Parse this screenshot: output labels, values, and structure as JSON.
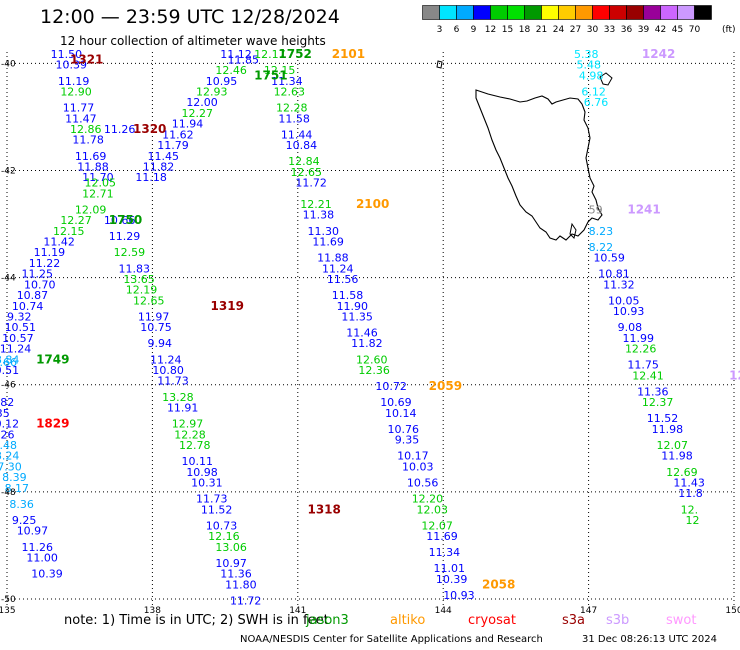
{
  "header": {
    "title": "12:00 — 23:59 UTC 12/28/2024",
    "subtitle": "12 hour collection of altimeter wave heights"
  },
  "color_scale": {
    "labels": [
      "3",
      "6",
      "9",
      "12",
      "15",
      "18",
      "21",
      "24",
      "27",
      "30",
      "33",
      "36",
      "39",
      "42",
      "45",
      "70"
    ],
    "unit": "(ft)",
    "colors": [
      "#888888",
      "#00e5ff",
      "#00aaff",
      "#0000ff",
      "#00cc00",
      "#00e000",
      "#009900",
      "#ffff00",
      "#ffcc00",
      "#ff9900",
      "#ff0000",
      "#cc0000",
      "#990000",
      "#990099",
      "#cc66ff",
      "#cc99ff",
      "#000000"
    ]
  },
  "map": {
    "x_ticks": [
      "135",
      "138",
      "141",
      "144",
      "147",
      "150"
    ],
    "y_ticks": [
      "-40",
      "-42",
      "-44",
      "-46",
      "-48",
      "-50"
    ],
    "lon_range": [
      135,
      150
    ],
    "lat_range": [
      -50,
      -39.9
    ]
  },
  "track_labels": [
    {
      "t": "1321",
      "lon": 136.3,
      "lat": -40.0,
      "c": "#990000"
    },
    {
      "t": "1320",
      "lon": 137.6,
      "lat": -41.3,
      "c": "#990000"
    },
    {
      "t": "1750",
      "lon": 137.1,
      "lat": -43.0,
      "c": "#009900"
    },
    {
      "t": "1749",
      "lon": 135.6,
      "lat": -45.6,
      "c": "#009900"
    },
    {
      "t": "1319",
      "lon": 139.2,
      "lat": -44.6,
      "c": "#990000"
    },
    {
      "t": "1829",
      "lon": 135.6,
      "lat": -46.8,
      "c": "#ff0000"
    },
    {
      "t": "1318",
      "lon": 141.2,
      "lat": -48.4,
      "c": "#990000"
    },
    {
      "t": "1751",
      "lon": 140.1,
      "lat": -40.3,
      "c": "#009900"
    },
    {
      "t": "1752",
      "lon": 140.6,
      "lat": -39.9,
      "c": "#009900"
    },
    {
      "t": "2101",
      "lon": 141.7,
      "lat": -39.9,
      "c": "#ff9900"
    },
    {
      "t": "2100",
      "lon": 142.2,
      "lat": -42.7,
      "c": "#ff9900"
    },
    {
      "t": "2059",
      "lon": 143.7,
      "lat": -46.1,
      "c": "#ff9900"
    },
    {
      "t": "2058",
      "lon": 144.8,
      "lat": -49.8,
      "c": "#ff9900"
    },
    {
      "t": "1242",
      "lon": 148.1,
      "lat": -39.9,
      "c": "#cc99ff"
    },
    {
      "t": "1241",
      "lon": 147.8,
      "lat": -42.8,
      "c": "#cc99ff"
    },
    {
      "t": "124",
      "lon": 149.9,
      "lat": -45.9,
      "c": "#cc99ff"
    }
  ],
  "observations": [
    {
      "t": "11.50",
      "lon": 135.9,
      "lat": -39.9,
      "c": "#0000ff"
    },
    {
      "t": "10.39",
      "lon": 136.0,
      "lat": -40.1,
      "c": "#0000ff"
    },
    {
      "t": "11.19",
      "lon": 136.05,
      "lat": -40.4,
      "c": "#0000ff"
    },
    {
      "t": "12.90",
      "lon": 136.1,
      "lat": -40.6,
      "c": "#00cc00"
    },
    {
      "t": "11.77",
      "lon": 136.15,
      "lat": -40.9,
      "c": "#0000ff"
    },
    {
      "t": "11.47",
      "lon": 136.2,
      "lat": -41.1,
      "c": "#0000ff"
    },
    {
      "t": "12.86",
      "lon": 136.3,
      "lat": -41.3,
      "c": "#00cc00"
    },
    {
      "t": "11.78",
      "lon": 136.35,
      "lat": -41.5,
      "c": "#0000ff"
    },
    {
      "t": "11.69",
      "lon": 136.4,
      "lat": -41.8,
      "c": "#0000ff"
    },
    {
      "t": "11.88",
      "lon": 136.45,
      "lat": -42.0,
      "c": "#0000ff"
    },
    {
      "t": "11.70",
      "lon": 136.55,
      "lat": -42.2,
      "c": "#0000ff"
    },
    {
      "t": "12.05",
      "lon": 136.6,
      "lat": -42.3,
      "c": "#00cc00"
    },
    {
      "t": "12.71",
      "lon": 136.55,
      "lat": -42.5,
      "c": "#00cc00"
    },
    {
      "t": "12.09",
      "lon": 136.4,
      "lat": -42.8,
      "c": "#00cc00"
    },
    {
      "t": "12.27",
      "lon": 136.1,
      "lat": -43.0,
      "c": "#00cc00"
    },
    {
      "t": "12.15",
      "lon": 135.95,
      "lat": -43.2,
      "c": "#00cc00"
    },
    {
      "t": "11.42",
      "lon": 135.75,
      "lat": -43.4,
      "c": "#0000ff"
    },
    {
      "t": "11.19",
      "lon": 135.55,
      "lat": -43.6,
      "c": "#0000ff"
    },
    {
      "t": "11.22",
      "lon": 135.45,
      "lat": -43.8,
      "c": "#0000ff"
    },
    {
      "t": "11.25",
      "lon": 135.3,
      "lat": -44.0,
      "c": "#0000ff"
    },
    {
      "t": "10.70",
      "lon": 135.35,
      "lat": -44.2,
      "c": "#0000ff"
    },
    {
      "t": "10.87",
      "lon": 135.2,
      "lat": -44.4,
      "c": "#0000ff"
    },
    {
      "t": "10.74",
      "lon": 135.1,
      "lat": -44.6,
      "c": "#0000ff"
    },
    {
      "t": "9.32",
      "lon": 135.0,
      "lat": -44.8,
      "c": "#0000ff"
    },
    {
      "t": "10.51",
      "lon": 134.95,
      "lat": -45.0,
      "c": "#0000ff"
    },
    {
      "t": "10.57",
      "lon": 134.9,
      "lat": -45.2,
      "c": "#0000ff"
    },
    {
      "t": "11.24",
      "lon": 134.85,
      "lat": -45.4,
      "c": "#0000ff"
    },
    {
      "t": "8.84",
      "lon": 134.75,
      "lat": -45.6,
      "c": "#00aaff"
    },
    {
      "t": "9.66",
      "lon": 134.7,
      "lat": -45.65,
      "c": "#00aaff"
    },
    {
      "t": "10.51",
      "lon": 134.6,
      "lat": -45.8,
      "c": "#0000ff"
    },
    {
      "t": "11.26",
      "lon": 137.0,
      "lat": -41.3,
      "c": "#0000ff"
    },
    {
      "t": "10.66",
      "lon": 137.0,
      "lat": -43.0,
      "c": "#0000ff"
    },
    {
      "t": "11.29",
      "lon": 137.1,
      "lat": -43.3,
      "c": "#0000ff"
    },
    {
      "t": "12.59",
      "lon": 137.2,
      "lat": -43.6,
      "c": "#00cc00"
    },
    {
      "t": "11.83",
      "lon": 137.3,
      "lat": -43.9,
      "c": "#0000ff"
    },
    {
      "t": "13.65",
      "lon": 137.4,
      "lat": -44.1,
      "c": "#00cc00"
    },
    {
      "t": "12.19",
      "lon": 137.45,
      "lat": -44.3,
      "c": "#00cc00"
    },
    {
      "t": "12.65",
      "lon": 137.6,
      "lat": -44.5,
      "c": "#00cc00"
    },
    {
      "t": "11.97",
      "lon": 137.7,
      "lat": -44.8,
      "c": "#0000ff"
    },
    {
      "t": "10.75",
      "lon": 137.75,
      "lat": -45.0,
      "c": "#0000ff"
    },
    {
      "t": "9.94",
      "lon": 137.9,
      "lat": -45.3,
      "c": "#0000ff"
    },
    {
      "t": "11.24",
      "lon": 137.95,
      "lat": -45.6,
      "c": "#0000ff"
    },
    {
      "t": "10.80",
      "lon": 138.0,
      "lat": -45.8,
      "c": "#0000ff"
    },
    {
      "t": "11.73",
      "lon": 138.1,
      "lat": -46.0,
      "c": "#0000ff"
    },
    {
      "t": "13.28",
      "lon": 138.2,
      "lat": -46.3,
      "c": "#00cc00"
    },
    {
      "t": "11.91",
      "lon": 138.3,
      "lat": -46.5,
      "c": "#0000ff"
    },
    {
      "t": "12.97",
      "lon": 138.4,
      "lat": -46.8,
      "c": "#00cc00"
    },
    {
      "t": "12.28",
      "lon": 138.45,
      "lat": -47.0,
      "c": "#00cc00"
    },
    {
      "t": "12.78",
      "lon": 138.55,
      "lat": -47.2,
      "c": "#00cc00"
    },
    {
      "t": "10.11",
      "lon": 138.6,
      "lat": -47.5,
      "c": "#0000ff"
    },
    {
      "t": "10.98",
      "lon": 138.7,
      "lat": -47.7,
      "c": "#0000ff"
    },
    {
      "t": "10.31",
      "lon": 138.8,
      "lat": -47.9,
      "c": "#0000ff"
    },
    {
      "t": "11.73",
      "lon": 138.9,
      "lat": -48.2,
      "c": "#0000ff"
    },
    {
      "t": "11.52",
      "lon": 139.0,
      "lat": -48.4,
      "c": "#0000ff"
    },
    {
      "t": "10.73",
      "lon": 139.1,
      "lat": -48.7,
      "c": "#0000ff"
    },
    {
      "t": "12.16",
      "lon": 139.15,
      "lat": -48.9,
      "c": "#00cc00"
    },
    {
      "t": "13.06",
      "lon": 139.3,
      "lat": -49.1,
      "c": "#00cc00"
    },
    {
      "t": "10.97",
      "lon": 139.3,
      "lat": -49.4,
      "c": "#0000ff"
    },
    {
      "t": "11.36",
      "lon": 139.4,
      "lat": -49.6,
      "c": "#0000ff"
    },
    {
      "t": "11.80",
      "lon": 139.5,
      "lat": -49.8,
      "c": "#0000ff"
    },
    {
      "t": "11.72",
      "lon": 139.6,
      "lat": -50.1,
      "c": "#0000ff"
    },
    {
      "t": "10.82",
      "lon": 134.5,
      "lat": -46.4,
      "c": "#0000ff"
    },
    {
      "t": "9.35",
      "lon": 134.55,
      "lat": -46.6,
      "c": "#0000ff"
    },
    {
      "t": "10.12",
      "lon": 134.6,
      "lat": -46.8,
      "c": "#0000ff"
    },
    {
      "t": "9.26",
      "lon": 134.65,
      "lat": -47.0,
      "c": "#0000ff"
    },
    {
      "t": "8.48",
      "lon": 134.7,
      "lat": -47.2,
      "c": "#00aaff"
    },
    {
      "t": "8.24",
      "lon": 134.75,
      "lat": -47.4,
      "c": "#00aaff"
    },
    {
      "t": "7.30",
      "lon": 134.8,
      "lat": -47.6,
      "c": "#00aaff"
    },
    {
      "t": "8.39",
      "lon": 134.9,
      "lat": -47.8,
      "c": "#00aaff"
    },
    {
      "t": "8.17",
      "lon": 134.95,
      "lat": -48.0,
      "c": "#00aaff"
    },
    {
      "t": "8.36",
      "lon": 135.05,
      "lat": -48.3,
      "c": "#00aaff"
    },
    {
      "t": "9.25",
      "lon": 135.1,
      "lat": -48.6,
      "c": "#0000ff"
    },
    {
      "t": "10.97",
      "lon": 135.2,
      "lat": -48.8,
      "c": "#0000ff"
    },
    {
      "t": "11.26",
      "lon": 135.3,
      "lat": -49.1,
      "c": "#0000ff"
    },
    {
      "t": "11.00",
      "lon": 135.4,
      "lat": -49.3,
      "c": "#0000ff"
    },
    {
      "t": "10.39",
      "lon": 135.5,
      "lat": -49.6,
      "c": "#0000ff"
    },
    {
      "t": "11.12",
      "lon": 139.4,
      "lat": -39.9,
      "c": "#0000ff"
    },
    {
      "t": "11.85",
      "lon": 139.55,
      "lat": -40.0,
      "c": "#0000ff"
    },
    {
      "t": "12.46",
      "lon": 139.3,
      "lat": -40.2,
      "c": "#00cc00"
    },
    {
      "t": "10.95",
      "lon": 139.1,
      "lat": -40.4,
      "c": "#0000ff"
    },
    {
      "t": "12.93",
      "lon": 138.9,
      "lat": -40.6,
      "c": "#00cc00"
    },
    {
      "t": "12.00",
      "lon": 138.7,
      "lat": -40.8,
      "c": "#0000ff"
    },
    {
      "t": "12.27",
      "lon": 138.6,
      "lat": -41.0,
      "c": "#00cc00"
    },
    {
      "t": "11.94",
      "lon": 138.4,
      "lat": -41.2,
      "c": "#0000ff"
    },
    {
      "t": "11.62",
      "lon": 138.2,
      "lat": -41.4,
      "c": "#0000ff"
    },
    {
      "t": "11.79",
      "lon": 138.1,
      "lat": -41.6,
      "c": "#0000ff"
    },
    {
      "t": "11.45",
      "lon": 137.9,
      "lat": -41.8,
      "c": "#0000ff"
    },
    {
      "t": "11.82",
      "lon": 137.8,
      "lat": -42.0,
      "c": "#0000ff"
    },
    {
      "t": "11.18",
      "lon": 137.65,
      "lat": -42.2,
      "c": "#0000ff"
    },
    {
      "t": "12.17",
      "lon": 140.1,
      "lat": -39.9,
      "c": "#00cc00"
    },
    {
      "t": "12.15",
      "lon": 140.3,
      "lat": -40.2,
      "c": "#00cc00"
    },
    {
      "t": "11.34",
      "lon": 140.45,
      "lat": -40.4,
      "c": "#0000ff"
    },
    {
      "t": "12.63",
      "lon": 140.5,
      "lat": -40.6,
      "c": "#00cc00"
    },
    {
      "t": "12.28",
      "lon": 140.55,
      "lat": -40.9,
      "c": "#00cc00"
    },
    {
      "t": "11.58",
      "lon": 140.6,
      "lat": -41.1,
      "c": "#0000ff"
    },
    {
      "t": "11.44",
      "lon": 140.65,
      "lat": -41.4,
      "c": "#0000ff"
    },
    {
      "t": "10.84",
      "lon": 140.75,
      "lat": -41.6,
      "c": "#0000ff"
    },
    {
      "t": "12.84",
      "lon": 140.8,
      "lat": -41.9,
      "c": "#00cc00"
    },
    {
      "t": "12.65",
      "lon": 140.85,
      "lat": -42.1,
      "c": "#00cc00"
    },
    {
      "t": "11.72",
      "lon": 140.95,
      "lat": -42.3,
      "c": "#0000ff"
    },
    {
      "t": "12.21",
      "lon": 141.05,
      "lat": -42.7,
      "c": "#00cc00"
    },
    {
      "t": "11.38",
      "lon": 141.1,
      "lat": -42.9,
      "c": "#0000ff"
    },
    {
      "t": "11.30",
      "lon": 141.2,
      "lat": -43.2,
      "c": "#0000ff"
    },
    {
      "t": "11.69",
      "lon": 141.3,
      "lat": -43.4,
      "c": "#0000ff"
    },
    {
      "t": "11.88",
      "lon": 141.4,
      "lat": -43.7,
      "c": "#0000ff"
    },
    {
      "t": "11.24",
      "lon": 141.5,
      "lat": -43.9,
      "c": "#0000ff"
    },
    {
      "t": "11.56",
      "lon": 141.6,
      "lat": -44.1,
      "c": "#0000ff"
    },
    {
      "t": "11.58",
      "lon": 141.7,
      "lat": -44.4,
      "c": "#0000ff"
    },
    {
      "t": "11.90",
      "lon": 141.8,
      "lat": -44.6,
      "c": "#0000ff"
    },
    {
      "t": "11.35",
      "lon": 141.9,
      "lat": -44.8,
      "c": "#0000ff"
    },
    {
      "t": "11.46",
      "lon": 142.0,
      "lat": -45.1,
      "c": "#0000ff"
    },
    {
      "t": "11.82",
      "lon": 142.1,
      "lat": -45.3,
      "c": "#0000ff"
    },
    {
      "t": "12.60",
      "lon": 142.2,
      "lat": -45.6,
      "c": "#00cc00"
    },
    {
      "t": "12.36",
      "lon": 142.25,
      "lat": -45.8,
      "c": "#00cc00"
    },
    {
      "t": "10.72",
      "lon": 142.6,
      "lat": -46.1,
      "c": "#0000ff"
    },
    {
      "t": "10.69",
      "lon": 142.7,
      "lat": -46.4,
      "c": "#0000ff"
    },
    {
      "t": "10.14",
      "lon": 142.8,
      "lat": -46.6,
      "c": "#0000ff"
    },
    {
      "t": "10.76",
      "lon": 142.85,
      "lat": -46.9,
      "c": "#0000ff"
    },
    {
      "t": "9.35",
      "lon": 143.0,
      "lat": -47.1,
      "c": "#0000ff"
    },
    {
      "t": "10.17",
      "lon": 143.05,
      "lat": -47.4,
      "c": "#0000ff"
    },
    {
      "t": "10.03",
      "lon": 143.15,
      "lat": -47.6,
      "c": "#0000ff"
    },
    {
      "t": "10.56",
      "lon": 143.25,
      "lat": -47.9,
      "c": "#0000ff"
    },
    {
      "t": "12.20",
      "lon": 143.35,
      "lat": -48.2,
      "c": "#00cc00"
    },
    {
      "t": "12.03",
      "lon": 143.45,
      "lat": -48.4,
      "c": "#00cc00"
    },
    {
      "t": "12.07",
      "lon": 143.55,
      "lat": -48.7,
      "c": "#00cc00"
    },
    {
      "t": "11.69",
      "lon": 143.65,
      "lat": -48.9,
      "c": "#0000ff"
    },
    {
      "t": "11.34",
      "lon": 143.7,
      "lat": -49.2,
      "c": "#0000ff"
    },
    {
      "t": "11.01",
      "lon": 143.8,
      "lat": -49.5,
      "c": "#0000ff"
    },
    {
      "t": "10.39",
      "lon": 143.85,
      "lat": -49.7,
      "c": "#0000ff"
    },
    {
      "t": "10.93",
      "lon": 144.0,
      "lat": -50.0,
      "c": "#0000ff"
    },
    {
      "t": "5.38",
      "lon": 146.7,
      "lat": -39.9,
      "c": "#00e5ff"
    },
    {
      "t": "5.48",
      "lon": 146.75,
      "lat": -40.1,
      "c": "#00e5ff"
    },
    {
      "t": "4.98",
      "lon": 146.8,
      "lat": -40.3,
      "c": "#00e5ff"
    },
    {
      "t": "6.12",
      "lon": 146.85,
      "lat": -40.6,
      "c": "#00e5ff"
    },
    {
      "t": "6.76",
      "lon": 146.9,
      "lat": -40.8,
      "c": "#00e5ff"
    },
    {
      "t": "59",
      "lon": 147.0,
      "lat": -42.8,
      "c": "#888888"
    },
    {
      "t": "8.23",
      "lon": 147.0,
      "lat": -43.2,
      "c": "#00aaff"
    },
    {
      "t": "8.22",
      "lon": 147.0,
      "lat": -43.5,
      "c": "#00aaff"
    },
    {
      "t": "10.59",
      "lon": 147.1,
      "lat": -43.7,
      "c": "#0000ff"
    },
    {
      "t": "10.81",
      "lon": 147.2,
      "lat": -44.0,
      "c": "#0000ff"
    },
    {
      "t": "11.32",
      "lon": 147.3,
      "lat": -44.2,
      "c": "#0000ff"
    },
    {
      "t": "10.05",
      "lon": 147.4,
      "lat": -44.5,
      "c": "#0000ff"
    },
    {
      "t": "10.93",
      "lon": 147.5,
      "lat": -44.7,
      "c": "#0000ff"
    },
    {
      "t": "9.08",
      "lon": 147.6,
      "lat": -45.0,
      "c": "#0000ff"
    },
    {
      "t": "11.99",
      "lon": 147.7,
      "lat": -45.2,
      "c": "#0000ff"
    },
    {
      "t": "12.26",
      "lon": 147.75,
      "lat": -45.4,
      "c": "#00cc00"
    },
    {
      "t": "11.75",
      "lon": 147.8,
      "lat": -45.7,
      "c": "#0000ff"
    },
    {
      "t": "12.41",
      "lon": 147.9,
      "lat": -45.9,
      "c": "#00cc00"
    },
    {
      "t": "11.36",
      "lon": 148.0,
      "lat": -46.2,
      "c": "#0000ff"
    },
    {
      "t": "12.37",
      "lon": 148.1,
      "lat": -46.4,
      "c": "#00cc00"
    },
    {
      "t": "11.52",
      "lon": 148.2,
      "lat": -46.7,
      "c": "#0000ff"
    },
    {
      "t": "11.98",
      "lon": 148.3,
      "lat": -46.9,
      "c": "#0000ff"
    },
    {
      "t": "12.07",
      "lon": 148.4,
      "lat": -47.2,
      "c": "#00cc00"
    },
    {
      "t": "11.98",
      "lon": 148.5,
      "lat": -47.4,
      "c": "#0000ff"
    },
    {
      "t": "12.69",
      "lon": 148.6,
      "lat": -47.7,
      "c": "#00cc00"
    },
    {
      "t": "11.43",
      "lon": 148.75,
      "lat": -47.9,
      "c": "#0000ff"
    },
    {
      "t": "11.8",
      "lon": 148.85,
      "lat": -48.1,
      "c": "#0000ff"
    },
    {
      "t": "12.",
      "lon": 148.9,
      "lat": -48.4,
      "c": "#00cc00"
    },
    {
      "t": "12",
      "lon": 149.0,
      "lat": -48.6,
      "c": "#00cc00"
    }
  ],
  "footer": {
    "note": "note:  1) Time is in UTC; 2) SWH is in feet",
    "satellites": [
      {
        "name": "jason3",
        "color": "#009900"
      },
      {
        "name": "altiko",
        "color": "#ff9900"
      },
      {
        "name": "cryosat",
        "color": "#ff0000"
      },
      {
        "name": "s3a",
        "color": "#990000"
      },
      {
        "name": "s3b",
        "color": "#cc99ff"
      },
      {
        "name": "swot",
        "color": "#ff99ff"
      }
    ],
    "credit": "NOAA/NESDIS Center for Satellite Applications and Research",
    "timestamp": "31 Dec 08:26:13 UTC 2024"
  }
}
